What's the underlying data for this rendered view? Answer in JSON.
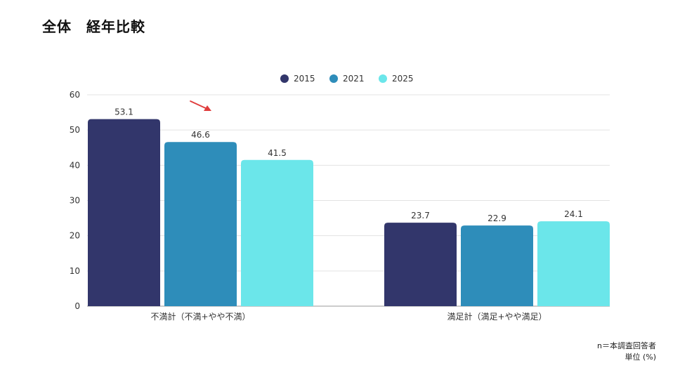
{
  "page": {
    "title": "全体　経年比較",
    "note_n": "n＝本調査回答者",
    "note_unit": "単位 (%)"
  },
  "chart_data": {
    "type": "bar",
    "categories": [
      "不満計（不満+やや不満）",
      "満足計（満足+やや満足）"
    ],
    "series": [
      {
        "name": "2015",
        "color": "#32366B",
        "values": [
          53.1,
          23.7
        ]
      },
      {
        "name": "2021",
        "color": "#2E8DBA",
        "values": [
          46.6,
          22.9
        ]
      },
      {
        "name": "2025",
        "color": "#6BE6EA",
        "values": [
          41.5,
          24.1
        ]
      }
    ],
    "ylim": [
      0,
      60
    ],
    "yticks": [
      0,
      10,
      20,
      30,
      40,
      50,
      60
    ],
    "grid": true,
    "legend": "top-center",
    "annotation": {
      "type": "arrow",
      "color": "#E03C3C",
      "icon": "red-arrow-icon"
    }
  }
}
